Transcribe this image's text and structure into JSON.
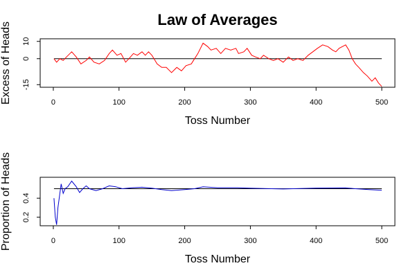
{
  "chart_data": [
    {
      "type": "line",
      "title": "Law of Averages",
      "x_label": "Toss Number",
      "y_label": "Excess of Heads",
      "xlim": [
        -20,
        520
      ],
      "ylim": [
        -16.5,
        11.5
      ],
      "xticks": [
        0,
        100,
        200,
        300,
        400,
        500
      ],
      "yticks": [
        -15,
        0,
        10
      ],
      "reference_line": 0,
      "series": [
        {
          "name": "Excess of Heads",
          "color": "#ff0000",
          "x": [
            1,
            5,
            10,
            15,
            20,
            28,
            35,
            42,
            50,
            55,
            62,
            70,
            78,
            85,
            90,
            97,
            103,
            110,
            115,
            122,
            128,
            135,
            140,
            145,
            150,
            158,
            165,
            172,
            180,
            188,
            195,
            202,
            210,
            215,
            220,
            228,
            235,
            240,
            248,
            255,
            262,
            270,
            278,
            282,
            290,
            295,
            302,
            308,
            315,
            320,
            328,
            335,
            342,
            350,
            358,
            365,
            372,
            380,
            388,
            395,
            402,
            410,
            418,
            425,
            430,
            435,
            440,
            445,
            450,
            455,
            460,
            465,
            472,
            478,
            485,
            490,
            495,
            500
          ],
          "values": [
            0,
            -2,
            0,
            -1,
            1,
            4,
            1,
            -3,
            -1,
            1,
            -2,
            -3,
            -1,
            3,
            5,
            2,
            3,
            -2,
            0,
            3,
            2,
            4,
            2,
            4,
            2,
            -3,
            -5,
            -5,
            -8,
            -5,
            -7,
            -4,
            -3,
            0,
            3,
            9,
            7,
            5,
            6,
            3,
            6,
            5,
            6,
            3,
            4,
            6,
            2,
            1,
            0,
            2,
            0,
            -1,
            0,
            -2,
            1,
            -1,
            0,
            -1,
            2,
            4,
            6,
            8,
            7,
            5,
            4,
            6,
            7,
            8,
            5,
            0,
            -3,
            -5,
            -8,
            -10,
            -13,
            -11,
            -14,
            -16
          ]
        }
      ]
    },
    {
      "type": "line",
      "x_label": "Toss Number",
      "y_label": "Proportion of Heads",
      "xlim": [
        -20,
        520
      ],
      "ylim": [
        0.11,
        0.62
      ],
      "xticks": [
        0,
        100,
        200,
        300,
        400,
        500
      ],
      "yticks": [
        0.2,
        0.4
      ],
      "reference_line": 0.5,
      "series": [
        {
          "name": "Proportion of Heads",
          "color": "#0000cc",
          "x": [
            1,
            3,
            5,
            7,
            10,
            12,
            15,
            18,
            22,
            28,
            35,
            40,
            45,
            50,
            55,
            65,
            75,
            85,
            95,
            105,
            120,
            135,
            150,
            165,
            180,
            200,
            215,
            228,
            250,
            280,
            300,
            350,
            400,
            445,
            460,
            480,
            500
          ],
          "values": [
            0.4,
            0.2,
            0.12,
            0.3,
            0.45,
            0.55,
            0.45,
            0.5,
            0.52,
            0.58,
            0.52,
            0.46,
            0.5,
            0.53,
            0.5,
            0.48,
            0.5,
            0.53,
            0.52,
            0.5,
            0.51,
            0.515,
            0.505,
            0.49,
            0.48,
            0.49,
            0.5,
            0.52,
            0.51,
            0.51,
            0.505,
            0.497,
            0.506,
            0.508,
            0.5,
            0.49,
            0.484
          ]
        }
      ]
    }
  ]
}
